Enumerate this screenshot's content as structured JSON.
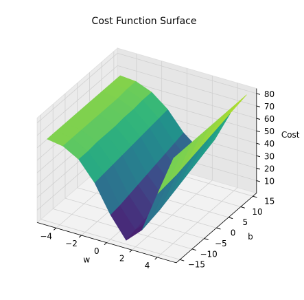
{
  "chart_data": {
    "type": "surface",
    "title": "Cost Function Surface",
    "xlabel": "w",
    "ylabel": "b",
    "zlabel": "Cost",
    "colormap": "viridis",
    "x": [
      -5,
      -3.75,
      -2.5,
      -1.25,
      0,
      1.25,
      2.5,
      3.75,
      5
    ],
    "y": [
      -15,
      -11.25,
      -7.5,
      -3.75,
      0,
      3.75,
      7.5,
      11.25,
      15
    ],
    "z": [
      [
        66,
        64,
        57,
        42,
        20,
        3,
        15,
        48,
        80
      ],
      [
        66,
        64,
        57,
        43,
        21,
        5,
        17,
        49,
        80
      ],
      [
        66,
        64,
        58,
        44,
        23,
        7,
        19,
        50,
        80
      ],
      [
        66,
        64,
        58,
        45,
        25,
        10,
        22,
        52,
        80
      ],
      [
        66,
        64,
        58,
        46,
        27,
        13,
        25,
        54,
        80
      ],
      [
        66,
        64,
        59,
        47,
        29,
        16,
        28,
        56,
        80
      ],
      [
        66,
        64,
        59,
        48,
        31,
        19,
        31,
        58,
        80
      ],
      [
        66,
        65,
        60,
        49,
        33,
        22,
        34,
        60,
        80
      ],
      [
        66,
        65,
        60,
        50,
        35,
        25,
        37,
        62,
        80
      ]
    ],
    "xlim": [
      -5.5,
      5.5
    ],
    "ylim": [
      -16.5,
      16.5
    ],
    "zlim": [
      0,
      84
    ],
    "xticks": [
      {
        "value": -4,
        "label": "−4"
      },
      {
        "value": -2,
        "label": "−2"
      },
      0,
      2,
      4
    ],
    "yticks": [
      {
        "value": -15,
        "label": "−15"
      },
      {
        "value": -10,
        "label": "−10"
      },
      {
        "value": -5,
        "label": "−5"
      },
      0,
      5,
      10,
      15
    ],
    "zticks": [
      10,
      20,
      30,
      40,
      50,
      60,
      70,
      80
    ],
    "grid": true
  }
}
